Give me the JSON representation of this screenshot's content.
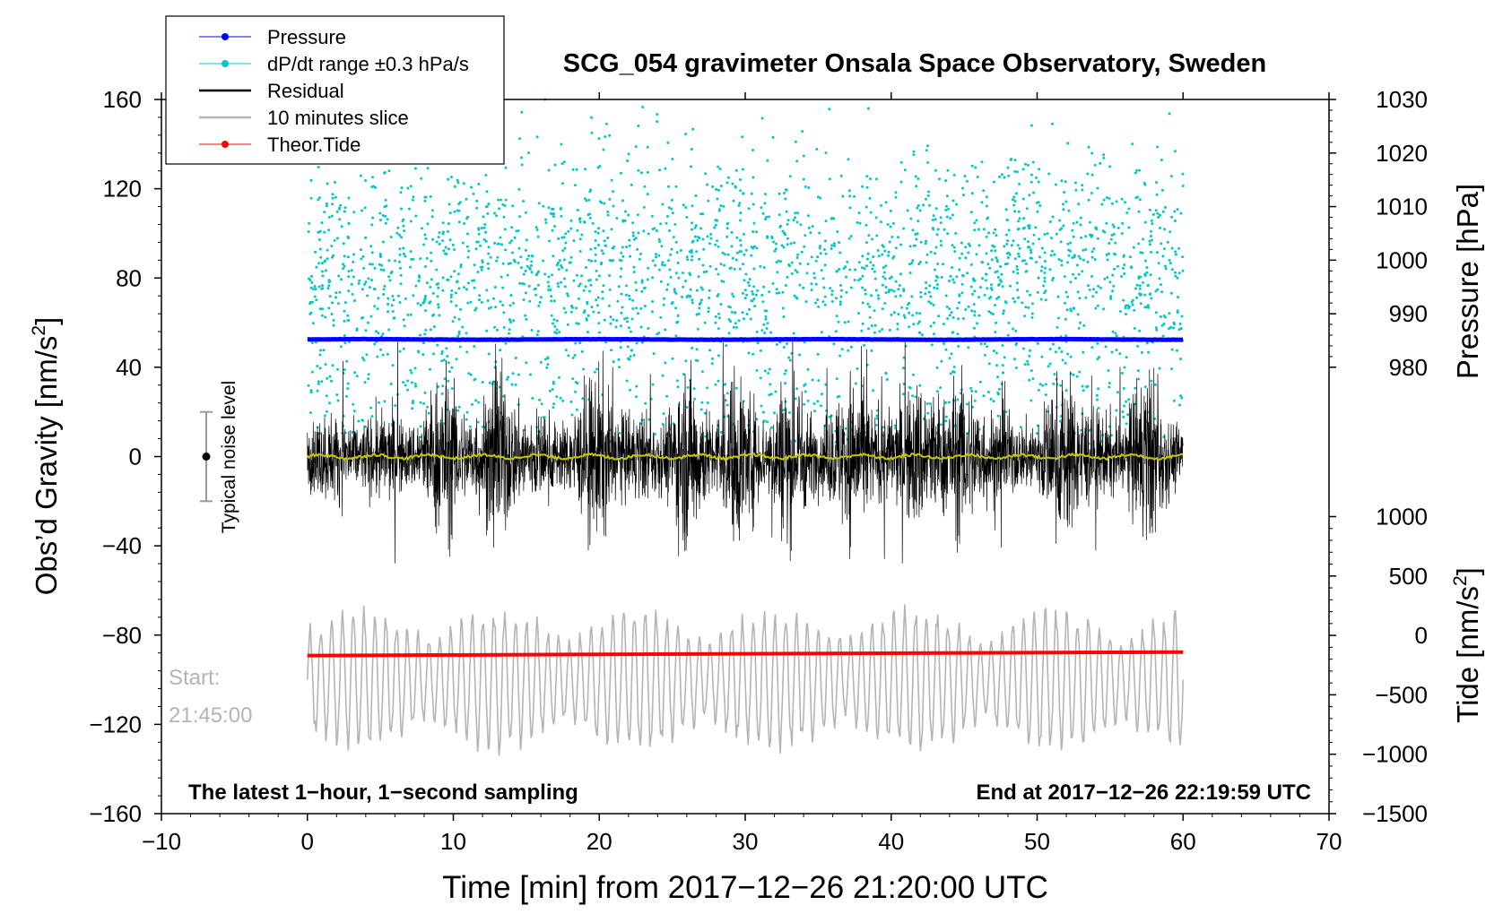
{
  "chart_data": {
    "type": "line",
    "title": "SCG_054 gravimeter Onsala Space Observatory, Sweden",
    "xlabel": "Time [min] from 2017−12−26 21:20:00 UTC",
    "ylabel_left": "Obs’d Gravity [nm/s²]",
    "ylabel_left_base": "Obs’d Gravity [nm/s",
    "ylabel_left_sup": "2",
    "ylabel_left_close": "]",
    "ylabel_right_pressure": "Pressure [hPa]",
    "ylabel_right_tide_base": "Tide [nm/s",
    "ylabel_right_tide_sup": "2",
    "ylabel_right_tide_close": "]",
    "xlim": [
      -10,
      70
    ],
    "ylim_left": [
      -160,
      160
    ],
    "x_ticks": [
      -10,
      0,
      10,
      20,
      30,
      40,
      50,
      60,
      70
    ],
    "x_tick_labels": [
      "−10",
      "0",
      "10",
      "20",
      "30",
      "40",
      "50",
      "60",
      "70"
    ],
    "y_left_ticks": [
      -160,
      -120,
      -80,
      -40,
      0,
      40,
      80,
      120,
      160
    ],
    "y_left_tick_labels": [
      "−160",
      "−120",
      "−80",
      "−40",
      "0",
      "40",
      "80",
      "120",
      "160"
    ],
    "pressure_axis": {
      "ylim": [
        980,
        1030
      ],
      "ticks": [
        980,
        990,
        1000,
        1010,
        1020,
        1030
      ],
      "tick_labels": [
        "980",
        "990",
        "1000",
        "1010",
        "1020",
        "1030"
      ]
    },
    "tide_axis": {
      "ylim": [
        -1500,
        1000
      ],
      "ticks": [
        -1500,
        -1000,
        -500,
        0,
        500,
        1000
      ],
      "tick_labels": [
        "−1500",
        "−1000",
        "−500",
        "0",
        "500",
        "1000"
      ]
    },
    "series": [
      {
        "name": "Pressure",
        "color": "#0000ff",
        "axis": "pressure",
        "approx_value_hPa": 985.2,
        "x_range": [
          0,
          60
        ]
      },
      {
        "name": "dP/dt range ±0.3 hPa/s",
        "color": "#00c8c8",
        "axis": "left",
        "approx_center": 85,
        "approx_spread": [
          10,
          160
        ],
        "x_range": [
          0,
          60
        ]
      },
      {
        "name": "Residual",
        "color": "#000000",
        "axis": "left",
        "approx_center": 0,
        "approx_amplitude": 45,
        "x_range": [
          0,
          60
        ]
      },
      {
        "name": "10 minutes slice",
        "color": "#b4b4b4",
        "axis": "left",
        "approx_center": -100,
        "approx_amplitude": 30,
        "x_range": [
          0,
          60
        ]
      },
      {
        "name": "Theor.Tide",
        "color": "#ff0000",
        "axis": "tide",
        "x": [
          0,
          60
        ],
        "y": [
          -170,
          -140
        ]
      }
    ],
    "smoothed_residual": {
      "color": "#c8c800",
      "approx_value": 0
    },
    "legend": {
      "placement": "top-left",
      "entries": [
        "Pressure",
        "dP/dt range ±0.3 hPa/s",
        "Residual",
        "10 minutes slice",
        "Theor.Tide"
      ]
    },
    "annotations": {
      "noise_label": "Typical noise level",
      "noise_bar_range": [
        -20,
        20
      ],
      "start_label": "Start:",
      "start_time": "21:45:00",
      "bottom_left": "The latest 1−hour, 1−second sampling",
      "bottom_right": "End at 2017−12−26 22:19:59 UTC"
    }
  }
}
